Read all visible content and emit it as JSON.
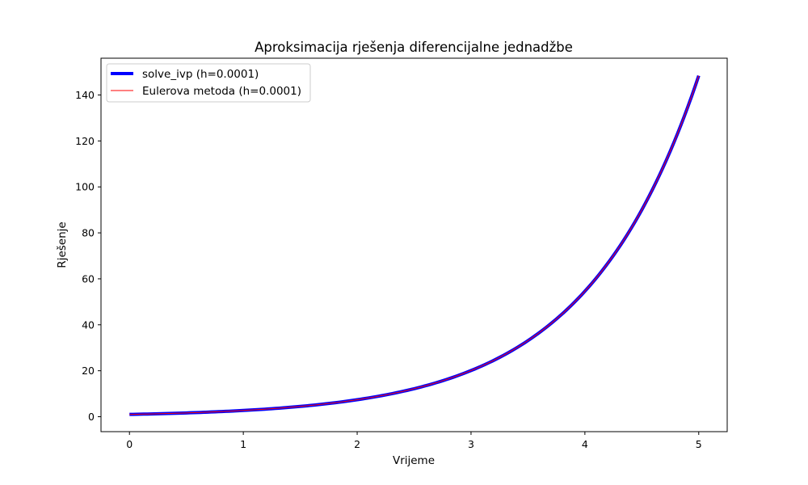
{
  "chart_data": {
    "type": "line",
    "title": "Aproksimacija rješenja diferencijalne jednadžbe",
    "xlabel": "Vrijeme",
    "ylabel": "Rješenje",
    "xlim": [
      -0.25,
      5.25
    ],
    "ylim": [
      -6.5,
      156
    ],
    "xticks": [
      0,
      1,
      2,
      3,
      4,
      5
    ],
    "yticks": [
      0,
      20,
      40,
      60,
      80,
      100,
      120,
      140
    ],
    "grid": false,
    "legend_position": "upper left",
    "x": [
      0,
      0.25,
      0.5,
      0.75,
      1,
      1.25,
      1.5,
      1.75,
      2,
      2.25,
      2.5,
      2.75,
      3,
      3.25,
      3.5,
      3.75,
      4,
      4.25,
      4.5,
      4.75,
      5
    ],
    "series": [
      {
        "name": "solve_ivp (h=0.0001)",
        "color": "#0000ff",
        "values": [
          1.0,
          1.28,
          1.65,
          2.12,
          2.72,
          3.49,
          4.48,
          5.75,
          7.39,
          9.49,
          12.18,
          15.64,
          20.09,
          25.79,
          33.12,
          42.52,
          54.6,
          70.11,
          90.02,
          115.58,
          148.41
        ]
      },
      {
        "name": "Eulerova metoda (h=0.0001)",
        "color": "#ff0000",
        "values": [
          1.0,
          1.28,
          1.65,
          2.12,
          2.72,
          3.49,
          4.48,
          5.75,
          7.39,
          9.49,
          12.18,
          15.64,
          20.09,
          25.79,
          33.12,
          42.52,
          54.59,
          70.1,
          90.01,
          115.56,
          148.37
        ]
      }
    ]
  }
}
